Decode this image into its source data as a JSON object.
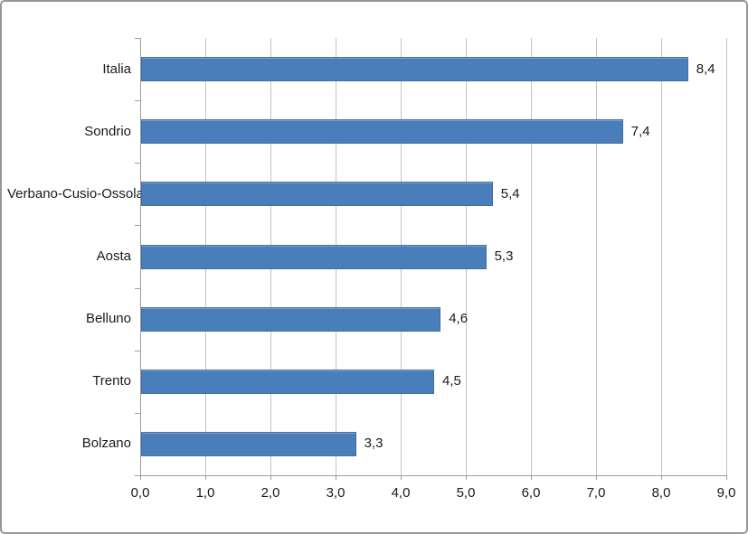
{
  "chart_data": {
    "type": "bar",
    "orientation": "horizontal",
    "title": "",
    "xlabel": "",
    "ylabel": "",
    "categories": [
      "Italia",
      "Sondrio",
      "Verbano-Cusio-Ossola",
      "Aosta",
      "Belluno",
      "Trento",
      "Bolzano"
    ],
    "values": [
      8.4,
      7.4,
      5.4,
      5.3,
      4.6,
      4.5,
      3.3
    ],
    "value_labels": [
      "8,4",
      "7,4",
      "5,4",
      "5,3",
      "4,6",
      "4,5",
      "3,3"
    ],
    "x_tick_labels": [
      "0,0",
      "1,0",
      "2,0",
      "3,0",
      "4,0",
      "5,0",
      "6,0",
      "7,0",
      "8,0",
      "9,0"
    ],
    "xlim": [
      0,
      9
    ],
    "grid": true,
    "legend": false,
    "colors": {
      "bar_fill": "#4A7EBB",
      "bar_border": "#44740A8",
      "gridline": "#C3C3C3",
      "axis": "#9D9D9D",
      "text": "#1a1a1a",
      "frame_border": "#979797",
      "background": "#ffffff"
    }
  }
}
